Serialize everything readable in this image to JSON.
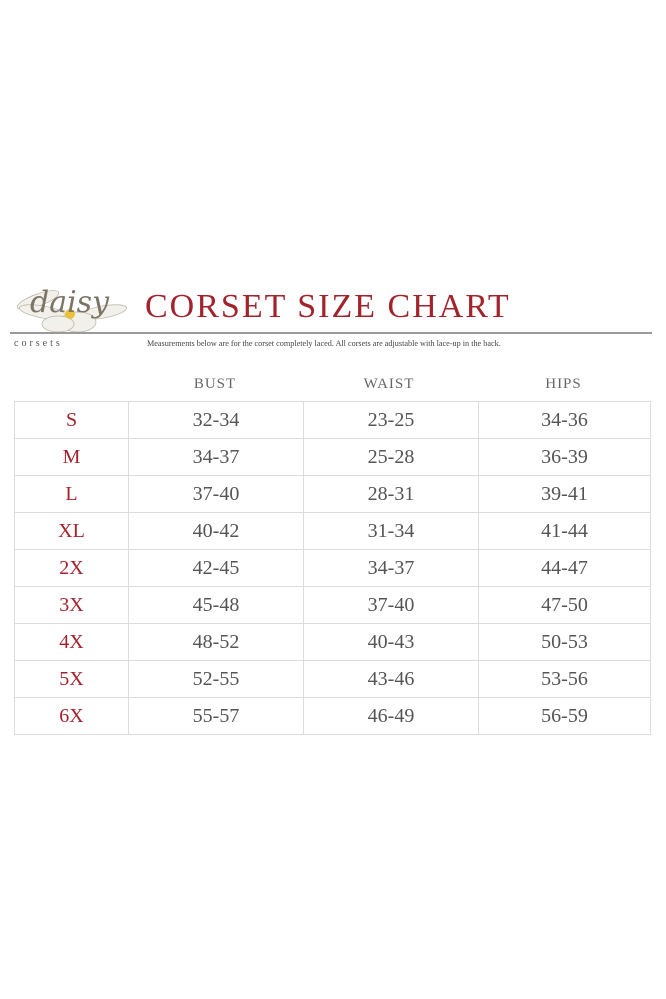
{
  "logo": {
    "script_text": "daisy",
    "sub_text": "corsets"
  },
  "title": "CORSET SIZE CHART",
  "subtitle": "Measurements below are for the corset completely laced. All corsets are adjustable with lace-up in the back.",
  "colors": {
    "accent": "#a3232d",
    "text": "#555555",
    "grid": "#dcdcdc"
  },
  "table": {
    "headers": [
      "BUST",
      "WAIST",
      "HIPS"
    ],
    "rows": [
      {
        "size": "S",
        "bust": "32-34",
        "waist": "23-25",
        "hips": "34-36"
      },
      {
        "size": "M",
        "bust": "34-37",
        "waist": "25-28",
        "hips": "36-39"
      },
      {
        "size": "L",
        "bust": "37-40",
        "waist": "28-31",
        "hips": "39-41"
      },
      {
        "size": "XL",
        "bust": "40-42",
        "waist": "31-34",
        "hips": "41-44"
      },
      {
        "size": "2X",
        "bust": "42-45",
        "waist": "34-37",
        "hips": "44-47"
      },
      {
        "size": "3X",
        "bust": "45-48",
        "waist": "37-40",
        "hips": "47-50"
      },
      {
        "size": "4X",
        "bust": "48-52",
        "waist": "40-43",
        "hips": "50-53"
      },
      {
        "size": "5X",
        "bust": "52-55",
        "waist": "43-46",
        "hips": "53-56"
      },
      {
        "size": "6X",
        "bust": "55-57",
        "waist": "46-49",
        "hips": "56-59"
      }
    ]
  }
}
